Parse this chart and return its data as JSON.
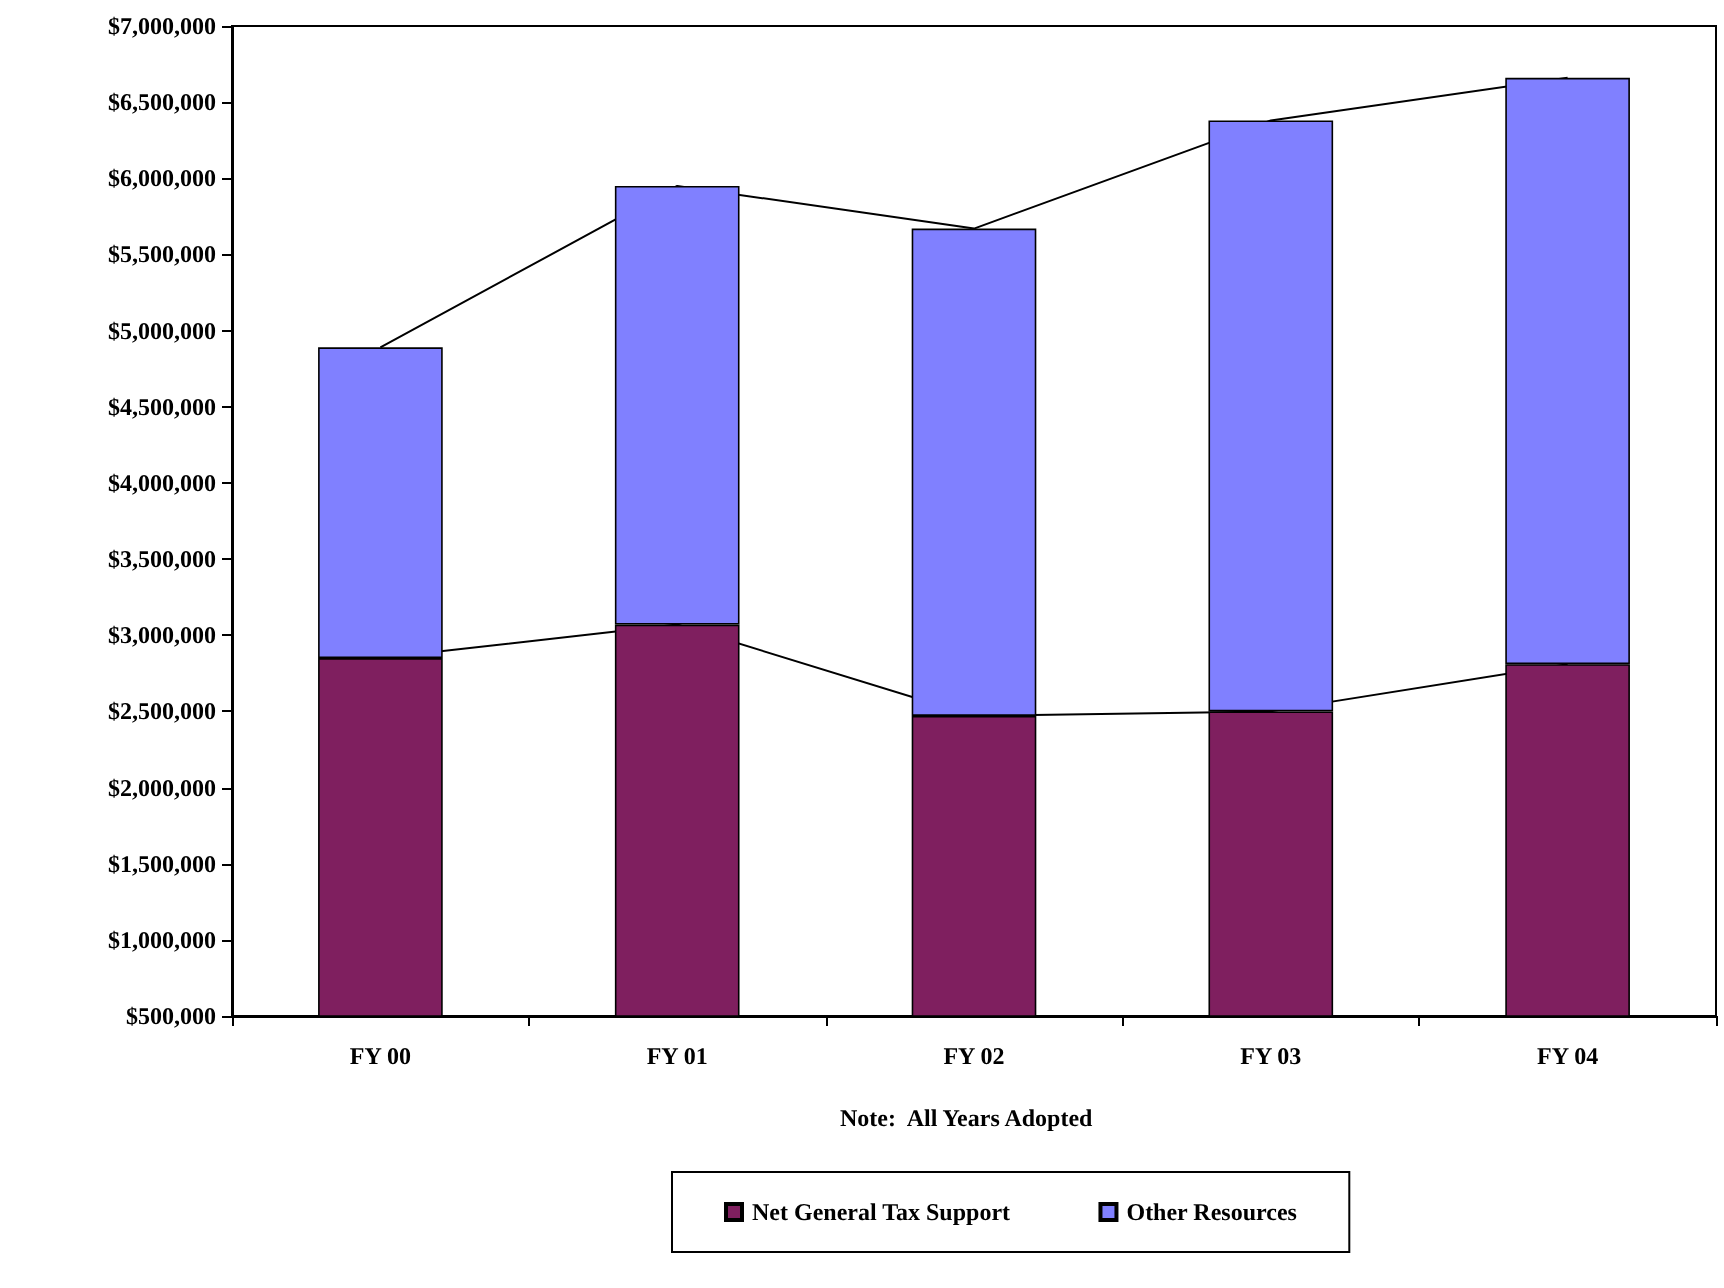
{
  "chart_data": {
    "type": "bar",
    "stacked": true,
    "categories": [
      "FY 00",
      "FY 01",
      "FY 02",
      "FY 03",
      "FY 04"
    ],
    "series": [
      {
        "name": "Net General Tax Support",
        "color": "#7f1f5f",
        "values": [
          2850000,
          3070000,
          2470000,
          2500000,
          2810000
        ]
      },
      {
        "name": "Other Resources",
        "color": "#8080ff",
        "values": [
          2040000,
          2880000,
          3200000,
          3880000,
          3850000
        ]
      },
      {
        "type": "line",
        "color": "#000000",
        "values": [
          2850000,
          3070000,
          2470000,
          2500000,
          2810000
        ]
      },
      {
        "type": "line",
        "color": "#000000",
        "values": [
          4890000,
          5950000,
          5670000,
          6380000,
          6660000
        ]
      }
    ],
    "ylim": [
      500000,
      7000000
    ],
    "yticks": [
      {
        "value": 500000,
        "label": "$500,000"
      },
      {
        "value": 1000000,
        "label": "$1,000,000"
      },
      {
        "value": 1500000,
        "label": "$1,500,000"
      },
      {
        "value": 2000000,
        "label": "$2,000,000"
      },
      {
        "value": 2500000,
        "label": "$2,500,000"
      },
      {
        "value": 3000000,
        "label": "$3,000,000"
      },
      {
        "value": 3500000,
        "label": "$3,500,000"
      },
      {
        "value": 4000000,
        "label": "$4,000,000"
      },
      {
        "value": 4500000,
        "label": "$4,500,000"
      },
      {
        "value": 5000000,
        "label": "$5,000,000"
      },
      {
        "value": 5500000,
        "label": "$5,500,000"
      },
      {
        "value": 6000000,
        "label": "$6,000,000"
      },
      {
        "value": 6500000,
        "label": "$6,500,000"
      },
      {
        "value": 7000000,
        "label": "$7,000,000"
      }
    ],
    "grid": false,
    "legend": "bottom",
    "marker": "none",
    "line_style": "solid",
    "annotations": [
      "Note:  All Years Adopted"
    ]
  }
}
